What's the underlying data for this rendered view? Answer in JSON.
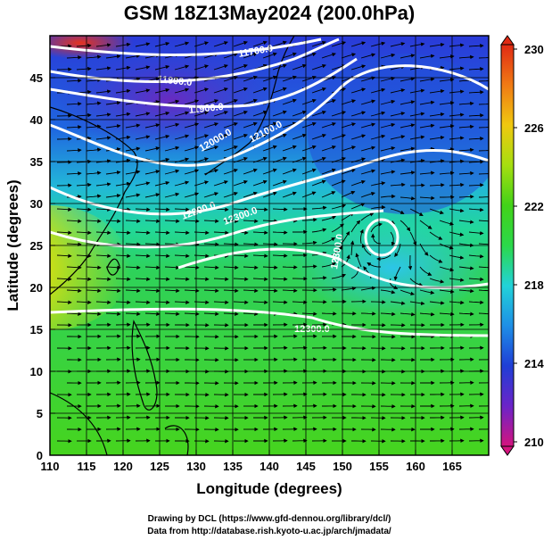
{
  "title": "GSM 18Z13May2024 (200.0hPa)",
  "x_axis": {
    "label": "Longitude (degrees)",
    "range": [
      110,
      170
    ],
    "ticks": [
      110,
      115,
      120,
      125,
      130,
      135,
      140,
      145,
      150,
      155,
      160,
      165
    ]
  },
  "y_axis": {
    "label": "Latitude  (degrees)",
    "range": [
      0,
      50
    ],
    "ticks": [
      0,
      5,
      10,
      15,
      20,
      25,
      30,
      35,
      40,
      45
    ]
  },
  "colorbar": {
    "range": [
      210,
      230
    ],
    "tick_labels": [
      "230",
      "226",
      "222",
      "218",
      "214",
      "210"
    ],
    "colors": [
      "#d4147e",
      "#6b24c8",
      "#1f3ed6",
      "#1e8fe6",
      "#22d2d8",
      "#2bd84a",
      "#42d218",
      "#a6de10",
      "#f0c810",
      "#f07a14",
      "#e02a14"
    ]
  },
  "contours": [
    {
      "label": "11700.0"
    },
    {
      "label": "11800.0"
    },
    {
      "label": "11900.0"
    },
    {
      "label": "12000.0"
    },
    {
      "label": "12100.0"
    },
    {
      "label": "12200.0"
    },
    {
      "label": "12300.0"
    },
    {
      "label": "12300.0"
    },
    {
      "label": "12300.0"
    }
  ],
  "credits": [
    "Drawing by DCL (https://www.gfd-dennou.org/library/dcl/)",
    "Data from http://database.rish.kyoto-u.ac.jp/arch/jmadata/"
  ]
}
